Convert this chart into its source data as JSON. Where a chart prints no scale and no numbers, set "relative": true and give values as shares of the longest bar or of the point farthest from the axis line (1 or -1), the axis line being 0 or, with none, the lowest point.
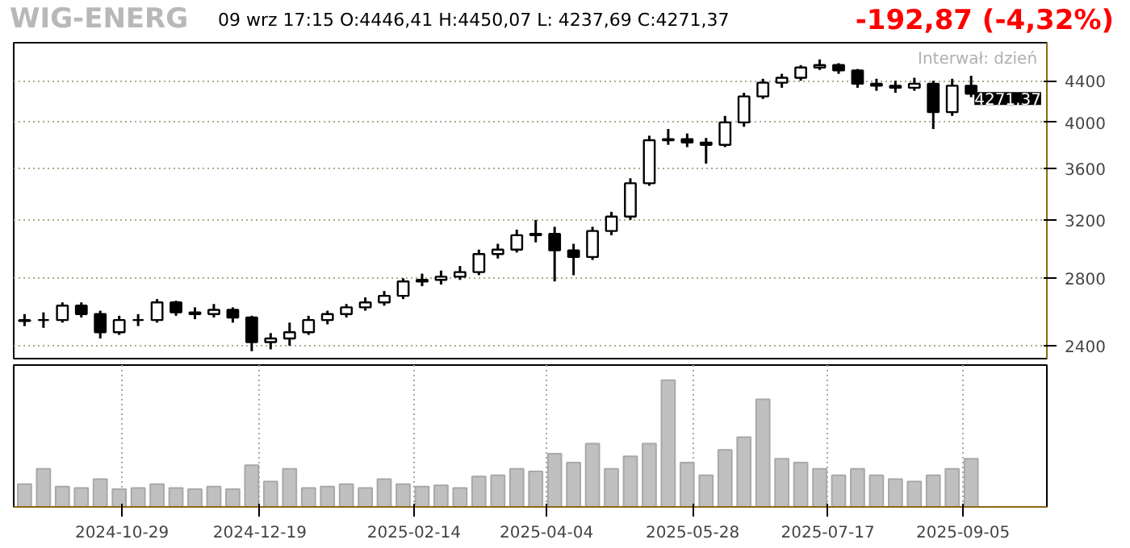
{
  "chart_data": [
    {
      "type": "candlestick",
      "title": "WIG-ENERG",
      "subtitle": "09 wrz   17:15  O:4446,41  H:4450,07  L: 4237,69  C:4271,37",
      "annotations": [
        "-192,87  (-4,32%)",
        "Interwał: dzień",
        {
          "text": "4271,37",
          "x": "2025-09-08",
          "y": 4271.37
        }
      ],
      "x": [
        "2024-09-23",
        "2024-09-30",
        "2024-10-07",
        "2024-10-14",
        "2024-10-21",
        "2024-10-28",
        "2024-11-04",
        "2024-11-11",
        "2024-11-18",
        "2024-11-25",
        "2024-12-02",
        "2024-12-09",
        "2024-12-16",
        "2024-12-23",
        "2024-12-30",
        "2025-01-06",
        "2025-01-13",
        "2025-01-20",
        "2025-01-27",
        "2025-02-03",
        "2025-02-10",
        "2025-02-17",
        "2025-02-24",
        "2025-03-03",
        "2025-03-10",
        "2025-03-17",
        "2025-03-24",
        "2025-03-31",
        "2025-04-07",
        "2025-04-14",
        "2025-04-21",
        "2025-04-28",
        "2025-05-05",
        "2025-05-12",
        "2025-05-19",
        "2025-05-26",
        "2025-06-02",
        "2025-06-09",
        "2025-06-16",
        "2025-06-23",
        "2025-06-30",
        "2025-07-07",
        "2025-07-14",
        "2025-07-21",
        "2025-07-28",
        "2025-08-04",
        "2025-08-11",
        "2025-08-18",
        "2025-08-25",
        "2025-09-01",
        "2025-09-08"
      ],
      "ohlc": [
        [
          2540,
          2580,
          2510,
          2545
        ],
        [
          2545,
          2590,
          2500,
          2545
        ],
        [
          2545,
          2650,
          2530,
          2630
        ],
        [
          2630,
          2650,
          2560,
          2580
        ],
        [
          2580,
          2600,
          2440,
          2475
        ],
        [
          2475,
          2570,
          2460,
          2545
        ],
        [
          2545,
          2580,
          2510,
          2545
        ],
        [
          2545,
          2670,
          2530,
          2650
        ],
        [
          2650,
          2660,
          2570,
          2590
        ],
        [
          2590,
          2620,
          2550,
          2580
        ],
        [
          2580,
          2640,
          2560,
          2605
        ],
        [
          2605,
          2620,
          2530,
          2560
        ],
        [
          2560,
          2570,
          2370,
          2420
        ],
        [
          2420,
          2470,
          2380,
          2440
        ],
        [
          2440,
          2530,
          2400,
          2475
        ],
        [
          2475,
          2570,
          2460,
          2545
        ],
        [
          2545,
          2600,
          2520,
          2580
        ],
        [
          2580,
          2640,
          2560,
          2620
        ],
        [
          2620,
          2680,
          2600,
          2650
        ],
        [
          2650,
          2720,
          2630,
          2690
        ],
        [
          2690,
          2800,
          2670,
          2780
        ],
        [
          2780,
          2830,
          2750,
          2790
        ],
        [
          2790,
          2850,
          2760,
          2810
        ],
        [
          2810,
          2880,
          2790,
          2840
        ],
        [
          2840,
          2990,
          2820,
          2960
        ],
        [
          2960,
          3030,
          2930,
          2990
        ],
        [
          2990,
          3130,
          2970,
          3090
        ],
        [
          3090,
          3200,
          3040,
          3100
        ],
        [
          3100,
          3150,
          2780,
          2985
        ],
        [
          2985,
          3030,
          2820,
          2940
        ],
        [
          2940,
          3150,
          2920,
          3120
        ],
        [
          3120,
          3260,
          3090,
          3225
        ],
        [
          3225,
          3520,
          3200,
          3480
        ],
        [
          3480,
          3880,
          3460,
          3840
        ],
        [
          3840,
          3940,
          3800,
          3850
        ],
        [
          3850,
          3900,
          3780,
          3820
        ],
        [
          3820,
          3860,
          3640,
          3800
        ],
        [
          3800,
          4060,
          3780,
          4000
        ],
        [
          4000,
          4280,
          3960,
          4245
        ],
        [
          4245,
          4420,
          4220,
          4380
        ],
        [
          4380,
          4470,
          4330,
          4430
        ],
        [
          4430,
          4560,
          4400,
          4535
        ],
        [
          4535,
          4620,
          4510,
          4560
        ],
        [
          4560,
          4580,
          4470,
          4505
        ],
        [
          4505,
          4520,
          4330,
          4370
        ],
        [
          4370,
          4420,
          4300,
          4350
        ],
        [
          4350,
          4400,
          4280,
          4330
        ],
        [
          4330,
          4430,
          4300,
          4370
        ],
        [
          4370,
          4400,
          3940,
          4095
        ],
        [
          4095,
          4420,
          4060,
          4350
        ],
        [
          4350,
          4450.07,
          4237.69,
          4271.37
        ]
      ],
      "log": "y",
      "ylim": [
        2330,
        4800
      ],
      "yticks": [
        2400,
        2800,
        3200,
        3600,
        4000,
        4400
      ],
      "xlim": [
        "2024-09-19",
        "2025-10-06"
      ],
      "tick_labels": "y",
      "grid": true
    },
    {
      "type": "bar",
      "relative": true,
      "color": "#c0c0c0",
      "x": [
        "2024-09-23",
        "2024-09-30",
        "2024-10-07",
        "2024-10-14",
        "2024-10-21",
        "2024-10-28",
        "2024-11-04",
        "2024-11-11",
        "2024-11-18",
        "2024-11-25",
        "2024-12-02",
        "2024-12-09",
        "2024-12-16",
        "2024-12-23",
        "2024-12-30",
        "2025-01-06",
        "2025-01-13",
        "2025-01-20",
        "2025-01-27",
        "2025-02-03",
        "2025-02-10",
        "2025-02-17",
        "2025-02-24",
        "2025-03-03",
        "2025-03-10",
        "2025-03-17",
        "2025-03-24",
        "2025-03-31",
        "2025-04-07",
        "2025-04-14",
        "2025-04-21",
        "2025-04-28",
        "2025-05-05",
        "2025-05-12",
        "2025-05-19",
        "2025-05-26",
        "2025-06-02",
        "2025-06-09",
        "2025-06-16",
        "2025-06-23",
        "2025-06-30",
        "2025-07-07",
        "2025-07-14",
        "2025-07-21",
        "2025-07-28",
        "2025-08-04",
        "2025-08-11",
        "2025-08-18",
        "2025-08-25",
        "2025-09-01",
        "2025-09-08"
      ],
      "values": [
        0.18,
        0.3,
        0.16,
        0.15,
        0.22,
        0.14,
        0.15,
        0.18,
        0.15,
        0.14,
        0.16,
        0.14,
        0.33,
        0.2,
        0.3,
        0.15,
        0.16,
        0.18,
        0.15,
        0.22,
        0.18,
        0.16,
        0.17,
        0.15,
        0.24,
        0.25,
        0.3,
        0.28,
        0.42,
        0.35,
        0.5,
        0.3,
        0.4,
        0.5,
        1.0,
        0.35,
        0.25,
        0.45,
        0.55,
        0.85,
        0.38,
        0.35,
        0.3,
        0.25,
        0.3,
        0.25,
        0.22,
        0.2,
        0.25,
        0.3,
        0.38
      ],
      "xlim": [
        "2024-09-19",
        "2025-10-06"
      ],
      "xticks": [
        "2024-10-29",
        "2024-12-19",
        "2025-02-14",
        "2025-04-04",
        "2025-05-28",
        "2025-07-17",
        "2025-09-05"
      ],
      "tick_labels": "x",
      "grid": "x"
    }
  ]
}
